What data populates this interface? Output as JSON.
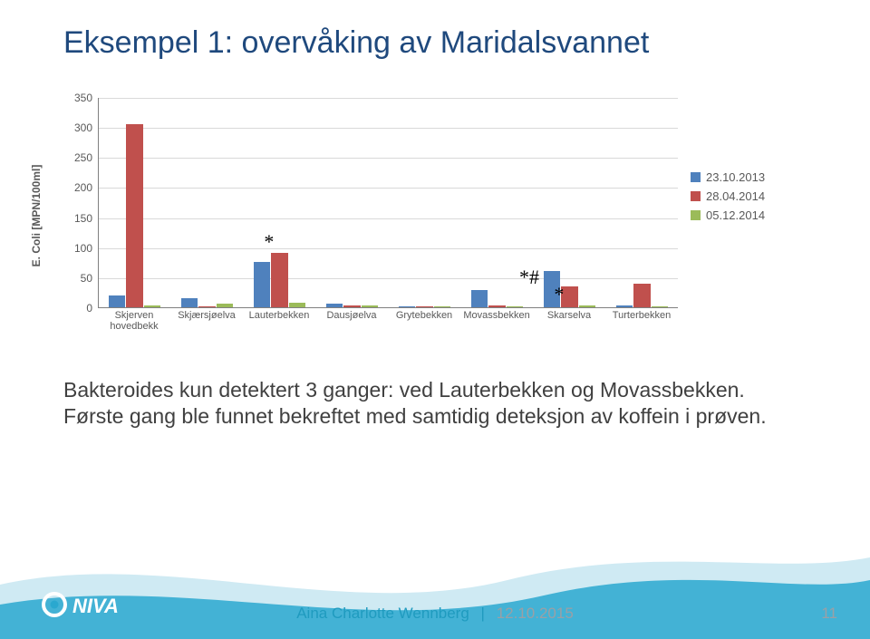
{
  "title": "Eksempel 1: overvåking av Maridalsvannet",
  "chart": {
    "type": "bar",
    "ylabel": "E. Coli [MPN/100ml]",
    "ylim": [
      0,
      350
    ],
    "ytick_step": 50,
    "grid_color": "#d9d9d9",
    "axis_color": "#808080",
    "categories": [
      "Skjerven\nhovedbekk",
      "Skjærsjøelva",
      "Lauterbekken",
      "Dausjøelva",
      "Grytebekken",
      "Movassbekken",
      "Skarselva",
      "Turterbekken"
    ],
    "series": [
      {
        "label": "23.10.2013",
        "color": "#4f81bd",
        "values": [
          20,
          15,
          75,
          6,
          2,
          28,
          60,
          3
        ]
      },
      {
        "label": "28.04.2014",
        "color": "#c0504d",
        "values": [
          305,
          2,
          90,
          3,
          1,
          3,
          35,
          40
        ]
      },
      {
        "label": "05.12.2014",
        "color": "#9bbb59",
        "values": [
          3,
          6,
          7,
          3,
          1,
          2,
          3,
          1
        ]
      }
    ],
    "bar_group_width": 0.72,
    "label_fontsize": 12,
    "tick_fontsize": 11
  },
  "annotations": [
    {
      "text": "*",
      "category_index": 2,
      "yvalue": 100
    },
    {
      "text": "*#",
      "category_index": 5,
      "between_index": 5,
      "yvalue": 40
    },
    {
      "text": "*",
      "category_index": 6,
      "yvalue": 12
    }
  ],
  "body": {
    "line1": "Bakteroides kun detektert 3 ganger: ved Lauterbekken og Movassbekken.",
    "line2": "Første gang ble funnet bekreftet med samtidig deteksjon av koffein i prøven."
  },
  "footer": {
    "name": "Aina Charlotte Wennberg",
    "date": "12.10.2015",
    "page": "11"
  },
  "logo_text": "NIVA",
  "colors": {
    "title": "#1f497d",
    "accent": "#1f9bbf",
    "wave1": "#cfeaf3",
    "wave2": "#2aa8cf"
  }
}
